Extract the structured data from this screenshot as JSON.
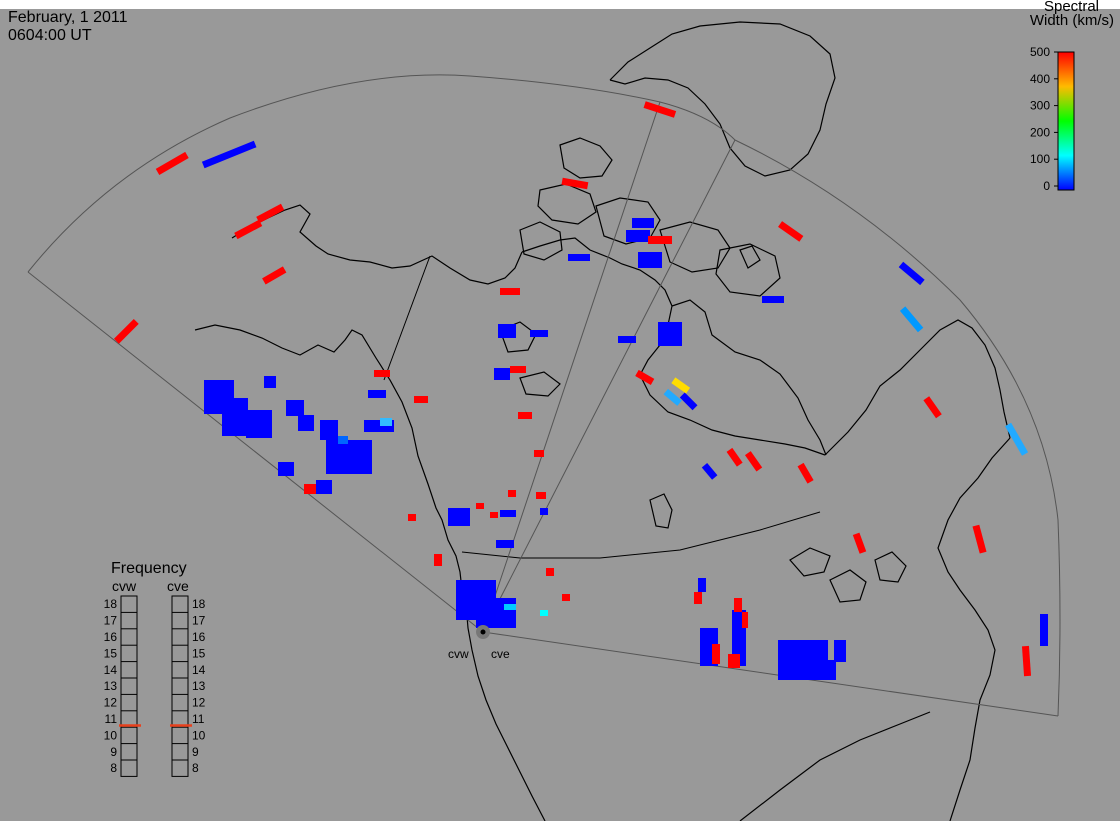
{
  "header": {
    "date": "February, 1 2011",
    "time": "0604:00 UT"
  },
  "colorbar": {
    "title_line1": "Spectral",
    "title_line2": "Width (km/s)",
    "ticks": [
      "500",
      "400",
      "300",
      "200",
      "100",
      "0"
    ],
    "max_value": 500,
    "colors": [
      "#ff0000",
      "#ffff00",
      "#00ff00",
      "#00ffff",
      "#0000ff"
    ]
  },
  "frequency_legend": {
    "title": "Frequency",
    "radar_left": "cvw",
    "radar_right": "cve",
    "levels": [
      "18",
      "17",
      "16",
      "15",
      "14",
      "13",
      "12",
      "11",
      "10",
      "9",
      "8"
    ],
    "cvw_value": 10.6,
    "cve_value": 10.6,
    "marker_color": "#e8401c"
  },
  "radars": {
    "left_name": "cvw",
    "right_name": "cve"
  },
  "colors": {
    "background": "#999999",
    "coastline": "#000000",
    "fov_outline": "#555555",
    "low_width": "#0000ff",
    "high_width": "#ff0000"
  }
}
